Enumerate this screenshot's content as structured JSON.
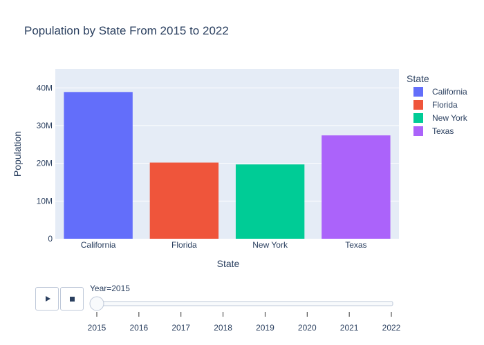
{
  "chart_data": {
    "type": "bar",
    "title": "Population by State From 2015 to 2022",
    "xlabel": "State",
    "ylabel": "Population",
    "categories": [
      "California",
      "Florida",
      "New York",
      "Texas"
    ],
    "values": [
      38900000,
      20200000,
      19700000,
      27400000
    ],
    "colors": [
      "#636efa",
      "#ef553b",
      "#00cc96",
      "#ab63fa"
    ],
    "ylim": [
      0,
      45000000
    ],
    "yticks": [
      {
        "value": 0,
        "label": "0"
      },
      {
        "value": 10000000,
        "label": "10M"
      },
      {
        "value": 20000000,
        "label": "20M"
      },
      {
        "value": 30000000,
        "label": "30M"
      },
      {
        "value": 40000000,
        "label": "40M"
      }
    ],
    "grid": true,
    "legend": {
      "title": "State",
      "position": "right",
      "items": [
        "California",
        "Florida",
        "New York",
        "Texas"
      ]
    }
  },
  "slider": {
    "current_label": "Year=2015",
    "steps": [
      "2015",
      "2016",
      "2017",
      "2018",
      "2019",
      "2020",
      "2021",
      "2022"
    ],
    "selected_index": 0
  },
  "controls": {
    "play_icon": "play-icon",
    "stop_icon": "stop-icon"
  }
}
